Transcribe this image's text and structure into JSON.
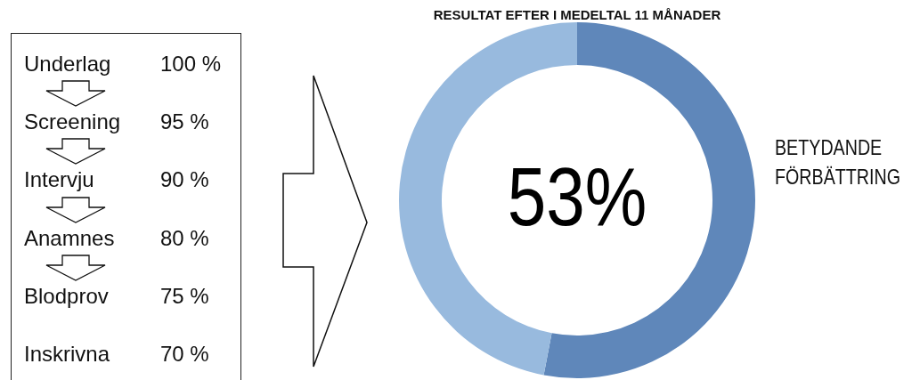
{
  "chart_data": [
    {
      "type": "other",
      "categories": [
        "Underlag",
        "Screening",
        "Intervju",
        "Anamnes",
        "Blodprov",
        "Inskrivna"
      ],
      "value_labels": [
        "100 %",
        "95 %",
        "90 %",
        "80 %",
        "75 %",
        "70 %"
      ]
    },
    {
      "type": "donut",
      "title": "RESULTAT EFTER I MEDELTAL 11 MÅNADER",
      "categories": [
        "BETYDANDE FÖRBÄTTRING",
        null
      ],
      "values": [
        53,
        47
      ],
      "colors": [
        "#5f87ba",
        "#98bade"
      ],
      "value_labels": [
        "53%",
        null
      ]
    }
  ]
}
